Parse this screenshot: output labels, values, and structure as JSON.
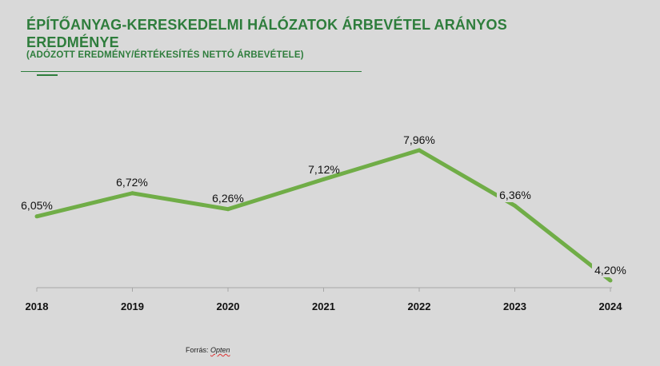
{
  "header": {
    "title": "ÉPÍTŐANYAG-KERESKEDELMI HÁLÓZATOK ÁRBEVÉTEL ARÁNYOS EREDMÉNYE",
    "subtitle": "(ADÓZOTT EREDMÉNY/ÉRTÉKESÍTÉS NETTÓ ÁRBEVÉTELE)"
  },
  "footer": {
    "source_label": "Forrás:",
    "source_name": "Opten"
  },
  "chart_data": {
    "type": "line",
    "title": "ÉPÍTŐANYAG-KERESKEDELMI HÁLÓZATOK ÁRBEVÉTEL ARÁNYOS EREDMÉNYE",
    "subtitle": "(ADÓZOTT EREDMÉNY/ÉRTÉKESÍTÉS NETTÓ ÁRBEVÉTELE)",
    "categories": [
      "2018",
      "2019",
      "2020",
      "2021",
      "2022",
      "2023",
      "2024"
    ],
    "values": [
      6.05,
      6.72,
      6.26,
      7.12,
      7.96,
      6.36,
      4.2
    ],
    "data_labels": [
      "6,05%",
      "6,72%",
      "6,26%",
      "7,12%",
      "7,96%",
      "6,36%",
      "4,20%"
    ],
    "ylim": [
      4.2,
      7.96
    ],
    "grid": false,
    "line_color": "#70ad47",
    "title_color": "#2e7d3c"
  }
}
